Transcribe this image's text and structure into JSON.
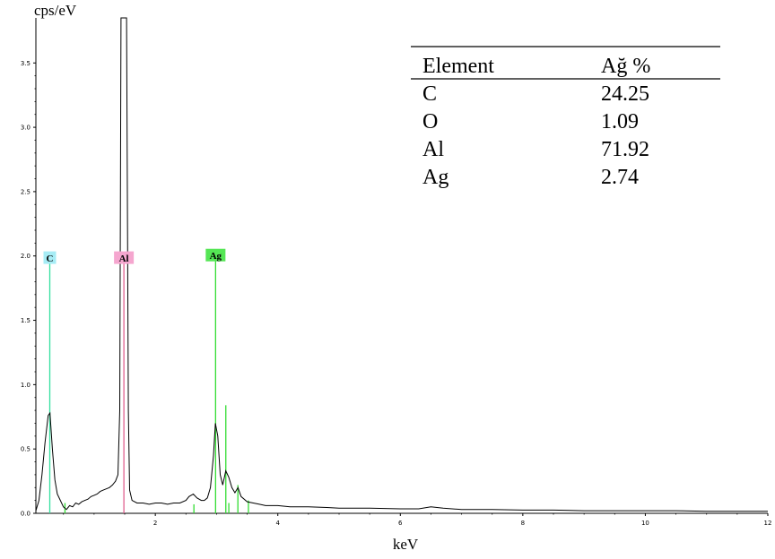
{
  "chart_data": {
    "type": "line",
    "ylabel": "cps/eV",
    "xlabel": "keV",
    "xlim": [
      0.05,
      12
    ],
    "ylim": [
      0,
      3.85
    ],
    "x_ticks": [
      {
        "value": 2,
        "label": "2"
      },
      {
        "value": 4,
        "label": "4"
      },
      {
        "value": 6,
        "label": "6"
      },
      {
        "value": 8,
        "label": "8"
      },
      {
        "value": 10,
        "label": "10"
      },
      {
        "value": 12,
        "label": "12"
      }
    ],
    "y_ticks": [
      {
        "value": 0.0,
        "label": "0.0"
      },
      {
        "value": 0.5,
        "label": "0.5"
      },
      {
        "value": 1.0,
        "label": "1.0"
      },
      {
        "value": 1.5,
        "label": "1.5"
      },
      {
        "value": 2.0,
        "label": "2.0"
      },
      {
        "value": 2.5,
        "label": "2.5"
      },
      {
        "value": 3.0,
        "label": "3.0"
      },
      {
        "value": 3.5,
        "label": "3.5"
      }
    ],
    "spectrum": {
      "color": "#000000",
      "points": [
        [
          0.05,
          0.02
        ],
        [
          0.1,
          0.1
        ],
        [
          0.15,
          0.3
        ],
        [
          0.2,
          0.55
        ],
        [
          0.25,
          0.76
        ],
        [
          0.28,
          0.78
        ],
        [
          0.32,
          0.5
        ],
        [
          0.36,
          0.26
        ],
        [
          0.4,
          0.15
        ],
        [
          0.45,
          0.1
        ],
        [
          0.5,
          0.05
        ],
        [
          0.55,
          0.03
        ],
        [
          0.6,
          0.06
        ],
        [
          0.65,
          0.05
        ],
        [
          0.7,
          0.08
        ],
        [
          0.75,
          0.07
        ],
        [
          0.8,
          0.09
        ],
        [
          0.85,
          0.1
        ],
        [
          0.9,
          0.11
        ],
        [
          0.95,
          0.13
        ],
        [
          1.0,
          0.14
        ],
        [
          1.05,
          0.15
        ],
        [
          1.1,
          0.17
        ],
        [
          1.15,
          0.18
        ],
        [
          1.2,
          0.19
        ],
        [
          1.25,
          0.2
        ],
        [
          1.3,
          0.22
        ],
        [
          1.35,
          0.25
        ],
        [
          1.39,
          0.3
        ],
        [
          1.42,
          0.8
        ],
        [
          1.44,
          3.9
        ],
        [
          1.53,
          3.9
        ],
        [
          1.56,
          0.8
        ],
        [
          1.58,
          0.18
        ],
        [
          1.62,
          0.1
        ],
        [
          1.7,
          0.08
        ],
        [
          1.8,
          0.08
        ],
        [
          1.9,
          0.07
        ],
        [
          2.0,
          0.08
        ],
        [
          2.1,
          0.08
        ],
        [
          2.2,
          0.07
        ],
        [
          2.3,
          0.08
        ],
        [
          2.4,
          0.08
        ],
        [
          2.5,
          0.1
        ],
        [
          2.55,
          0.13
        ],
        [
          2.62,
          0.15
        ],
        [
          2.68,
          0.12
        ],
        [
          2.75,
          0.1
        ],
        [
          2.8,
          0.1
        ],
        [
          2.85,
          0.12
        ],
        [
          2.9,
          0.2
        ],
        [
          2.95,
          0.45
        ],
        [
          2.98,
          0.7
        ],
        [
          3.02,
          0.6
        ],
        [
          3.06,
          0.3
        ],
        [
          3.1,
          0.22
        ],
        [
          3.15,
          0.33
        ],
        [
          3.2,
          0.28
        ],
        [
          3.25,
          0.2
        ],
        [
          3.3,
          0.16
        ],
        [
          3.35,
          0.2
        ],
        [
          3.4,
          0.13
        ],
        [
          3.5,
          0.09
        ],
        [
          3.6,
          0.08
        ],
        [
          3.7,
          0.07
        ],
        [
          3.8,
          0.06
        ],
        [
          4.0,
          0.06
        ],
        [
          4.2,
          0.05
        ],
        [
          4.5,
          0.05
        ],
        [
          4.8,
          0.045
        ],
        [
          5.0,
          0.04
        ],
        [
          5.5,
          0.04
        ],
        [
          6.0,
          0.035
        ],
        [
          6.3,
          0.035
        ],
        [
          6.5,
          0.05
        ],
        [
          6.7,
          0.04
        ],
        [
          7.0,
          0.03
        ],
        [
          7.5,
          0.03
        ],
        [
          8.0,
          0.025
        ],
        [
          8.5,
          0.025
        ],
        [
          9.0,
          0.02
        ],
        [
          9.5,
          0.02
        ],
        [
          10.0,
          0.02
        ],
        [
          10.5,
          0.02
        ],
        [
          11.0,
          0.015
        ],
        [
          11.5,
          0.015
        ],
        [
          12.0,
          0.015
        ]
      ]
    },
    "element_lines": [
      {
        "element": "C",
        "energy": 0.277,
        "height": 1.98,
        "color": "#33e0a0",
        "label_bg": "#a6ecf5",
        "labeled": true
      },
      {
        "element": "Al",
        "energy": 1.487,
        "height": 1.98,
        "color": "#e06090",
        "label_bg": "#f5a6cf",
        "labeled": true
      },
      {
        "element": "Ag",
        "energy": 2.984,
        "height": 2.0,
        "color": "#33dd33",
        "label_bg": "#55e655",
        "labeled": true
      },
      {
        "element": "Ag",
        "energy": 3.151,
        "height": 0.84,
        "color": "#33dd33",
        "labeled": false
      },
      {
        "element": "Ag",
        "energy": 3.348,
        "height": 0.22,
        "color": "#33dd33",
        "labeled": false
      },
      {
        "element": "Ag",
        "energy": 3.52,
        "height": 0.1,
        "color": "#33dd33",
        "labeled": false
      },
      {
        "element": "Ag",
        "energy": 2.63,
        "height": 0.07,
        "color": "#33dd33",
        "labeled": false
      },
      {
        "element": "Ag",
        "energy": 3.2,
        "height": 0.08,
        "color": "#33dd33",
        "labeled": false
      },
      {
        "element": "O",
        "energy": 0.525,
        "height": 0.08,
        "color": "#33dd33",
        "labeled": false
      }
    ],
    "composition_table": {
      "headers": [
        "Element",
        "Ağ %"
      ],
      "rows": [
        [
          "C",
          "24.25"
        ],
        [
          "O",
          "1.09"
        ],
        [
          "Al",
          "71.92"
        ],
        [
          "Ag",
          "2.74"
        ]
      ]
    }
  }
}
